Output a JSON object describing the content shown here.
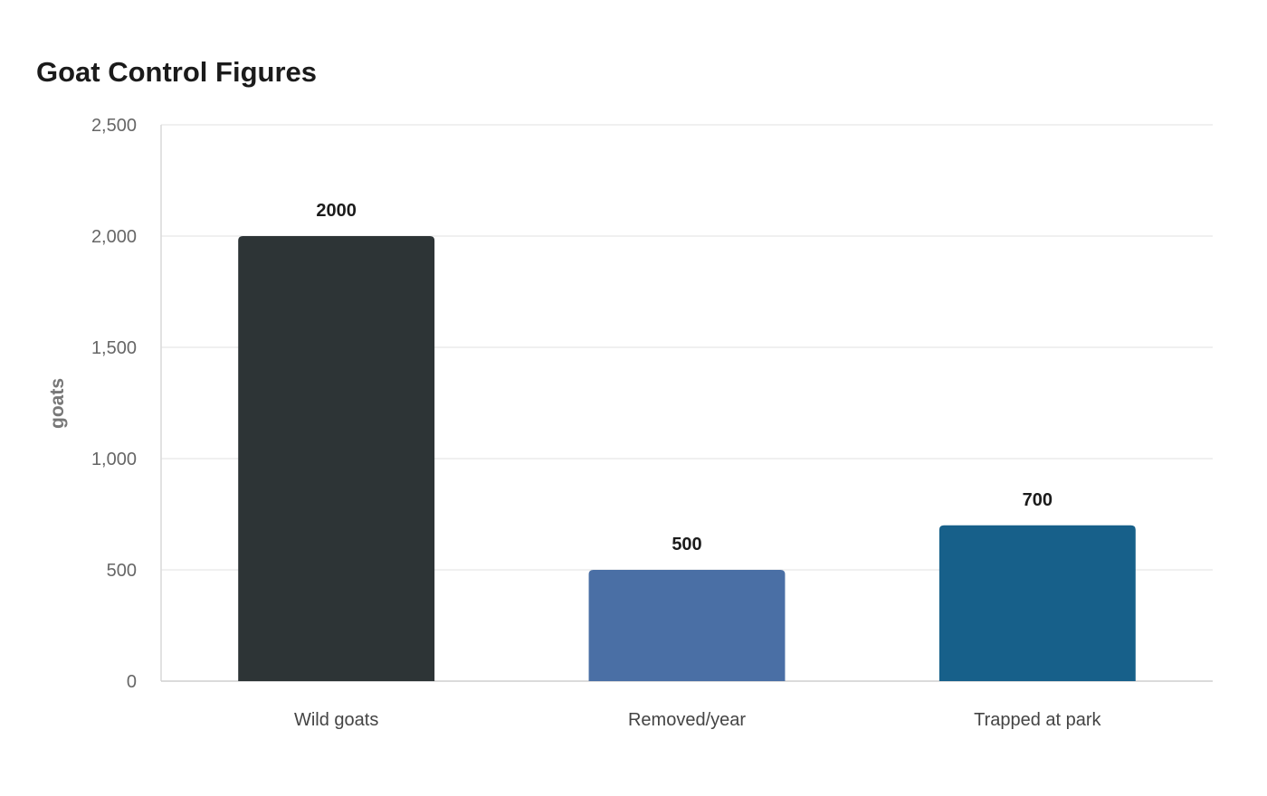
{
  "chart_data": {
    "type": "bar",
    "title": "Goat Control Figures",
    "xlabel": "",
    "ylabel": "goats",
    "categories": [
      "Wild goats",
      "Removed/year",
      "Trapped at park"
    ],
    "values": [
      2000,
      500,
      700
    ],
    "data_labels": [
      "2000",
      "500",
      "700"
    ],
    "colors": [
      "#2d3436",
      "#4a6fa5",
      "#17608a"
    ],
    "ylim": [
      0,
      2500
    ],
    "yticks": [
      0,
      500,
      1000,
      1500,
      2000,
      2500
    ],
    "ytick_labels": [
      "0",
      "500",
      "1,000",
      "1,500",
      "2,000",
      "2,500"
    ],
    "grid": true,
    "legend": "none"
  }
}
